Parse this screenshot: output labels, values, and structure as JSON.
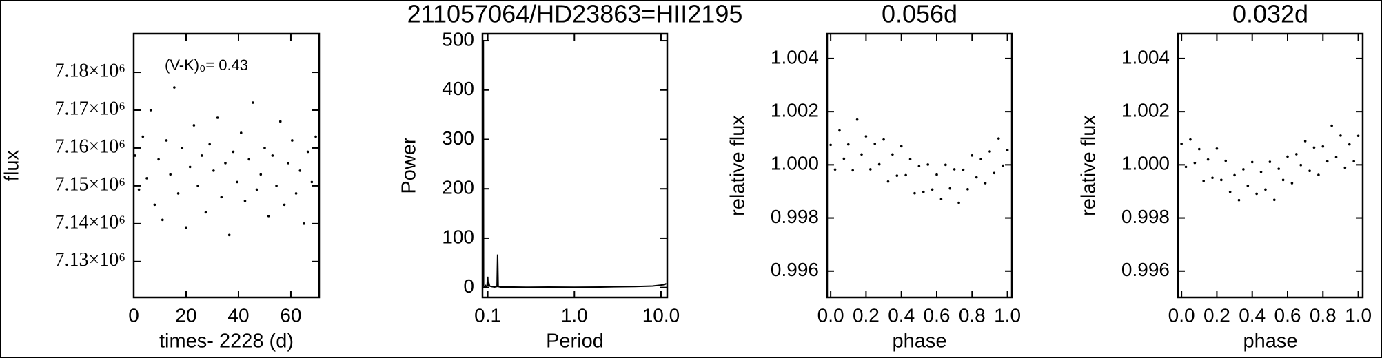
{
  "title": "211057064/HD23863=HII2195",
  "chart_data": [
    {
      "type": "scatter",
      "annotation": "(V-K)₀= 0.43",
      "x_label": "times- 2228 (d)",
      "y_label": "flux",
      "color": "#000000",
      "x": [
        0.5,
        2,
        3.5,
        5,
        6.5,
        8,
        9.5,
        11,
        12.5,
        14,
        15.5,
        17,
        18.5,
        20,
        21.5,
        23,
        24.5,
        26,
        27.5,
        29,
        30.5,
        32,
        33.5,
        35,
        36.5,
        38,
        39.5,
        41,
        42.5,
        44,
        45.5,
        47,
        48.5,
        50,
        51.5,
        53,
        54.5,
        56,
        57.5,
        59,
        60.5,
        62,
        63.5,
        65,
        66.5,
        68,
        69.5
      ],
      "values": [
        7158000,
        7149000,
        7163000,
        7152000,
        7170000,
        7145000,
        7157000,
        7141000,
        7162000,
        7153000,
        7176000,
        7148000,
        7160000,
        7139000,
        7155000,
        7166000,
        7150000,
        7158000,
        7143000,
        7161000,
        7154000,
        7168000,
        7147000,
        7156000,
        7137000,
        7159000,
        7151000,
        7164000,
        7146000,
        7157000,
        7172000,
        7149000,
        7153000,
        7160000,
        7142000,
        7158000,
        7150000,
        7167000,
        7145000,
        7156000,
        7162000,
        7148000,
        7154000,
        7140000,
        7159000,
        7151000,
        7163000
      ],
      "xlim": [
        0,
        70.8
      ],
      "ylim": [
        7120500,
        7190200
      ],
      "xticks": [
        0,
        20,
        40,
        60
      ],
      "yticks": [
        {
          "value": 7130000,
          "label": "7.13×10⁶"
        },
        {
          "value": 7140000,
          "label": "7.14×10⁶"
        },
        {
          "value": 7150000,
          "label": "7.15×10⁶"
        },
        {
          "value": 7160000,
          "label": "7.16×10⁶"
        },
        {
          "value": 7170000,
          "label": "7.17×10⁶"
        },
        {
          "value": 7180000,
          "label": "7.18×10⁶"
        }
      ]
    },
    {
      "type": "line",
      "x_label": "Period",
      "y_label": "Power",
      "color": "#000000",
      "log_x": true,
      "x": [
        0.088,
        0.0885,
        0.089,
        0.0895,
        0.09,
        0.092,
        0.094,
        0.096,
        0.098,
        0.1,
        0.101,
        0.102,
        0.105,
        0.11,
        0.12,
        0.128,
        0.13,
        0.132,
        0.14,
        0.2,
        0.3,
        0.5,
        1,
        2,
        5,
        8,
        10,
        11,
        11.5
      ],
      "values": [
        5,
        500,
        500,
        2,
        3,
        1,
        4,
        2,
        3,
        22,
        2,
        12,
        3,
        2,
        1,
        2,
        67,
        2,
        1,
        1,
        0.5,
        1,
        0.5,
        1,
        2,
        3,
        5,
        6,
        8
      ],
      "xlim": [
        0.087,
        11.8
      ],
      "ylim": [
        -20,
        514
      ],
      "xticks": [
        0.1,
        {
          "value": 1,
          "label": "1.0"
        },
        {
          "value": 10,
          "label": "10.0"
        }
      ],
      "yticks": [
        0,
        100,
        200,
        300,
        400,
        500
      ]
    },
    {
      "type": "scatter",
      "title": "0.056d",
      "x_label": "phase",
      "y_label": "relative flux",
      "color": "#000000",
      "x": [
        0,
        0.025,
        0.05,
        0.075,
        0.1,
        0.125,
        0.15,
        0.175,
        0.2,
        0.225,
        0.25,
        0.275,
        0.3,
        0.325,
        0.35,
        0.375,
        0.4,
        0.425,
        0.45,
        0.475,
        0.5,
        0.525,
        0.55,
        0.575,
        0.6,
        0.625,
        0.65,
        0.675,
        0.7,
        0.725,
        0.75,
        0.775,
        0.8,
        0.825,
        0.85,
        0.875,
        0.9,
        0.925,
        0.95,
        0.975,
        1
      ],
      "values": [
        1.00075,
        0.99982,
        1.00129,
        1.00023,
        1.00077,
        0.99979,
        1.0017,
        1.00039,
        1.00107,
        0.99983,
        1.00079,
        1.00002,
        1.00095,
        0.99937,
        1.00039,
        0.99959,
        1.0007,
        0.99961,
        1.00021,
        0.99893,
        0.99995,
        0.99898,
        1.00001,
        0.99907,
        0.99963,
        0.99871,
        1.0,
        0.99911,
        0.99983,
        0.99857,
        0.99981,
        0.99908,
        1.00035,
        0.99953,
        1.00021,
        0.99931,
        1.0005,
        0.99969,
        1.00099,
        0.99997,
        1.00055
      ],
      "xlim": [
        -0.02,
        1.025
      ],
      "ylim": [
        0.99501,
        1.00493
      ],
      "xticks": [
        {
          "value": 0,
          "label": "0.0"
        },
        0.2,
        0.4,
        0.6,
        0.8,
        {
          "value": 1,
          "label": "1.0"
        }
      ],
      "yticks": [
        0.996,
        0.998,
        {
          "value": 1,
          "label": "1.000"
        },
        1.002,
        1.004
      ]
    },
    {
      "type": "scatter",
      "title": "0.032d",
      "x_label": "phase",
      "y_label": "relative flux",
      "color": "#000000",
      "x": [
        0,
        0.025,
        0.05,
        0.075,
        0.1,
        0.125,
        0.15,
        0.175,
        0.2,
        0.225,
        0.25,
        0.275,
        0.3,
        0.325,
        0.35,
        0.375,
        0.4,
        0.425,
        0.45,
        0.475,
        0.5,
        0.525,
        0.55,
        0.575,
        0.6,
        0.625,
        0.65,
        0.675,
        0.7,
        0.725,
        0.75,
        0.775,
        0.8,
        0.825,
        0.85,
        0.875,
        0.9,
        0.925,
        0.95,
        0.975,
        1
      ],
      "values": [
        1.00079,
        0.99992,
        1.00095,
        1.00007,
        1.00059,
        0.99939,
        1.0002,
        0.99951,
        1.00061,
        0.99943,
        1.00015,
        0.99898,
        0.99961,
        0.99867,
        0.99983,
        0.99921,
        1.0001,
        0.99891,
        0.99973,
        0.99907,
        1.00011,
        0.99868,
        0.99985,
        0.99943,
        1.00031,
        0.99931,
        1.0004,
        0.99999,
        1.00089,
        0.99977,
        1.00065,
        0.99962,
        1.00069,
        1.00013,
        1.00147,
        1.00029,
        1.0011,
        0.99989,
        1.00077,
        1.00013,
        1.00109
      ],
      "xlim": [
        -0.02,
        1.025
      ],
      "ylim": [
        0.99501,
        1.00493
      ],
      "xticks": [
        {
          "value": 0,
          "label": "0.0"
        },
        0.2,
        0.4,
        0.6,
        0.8,
        {
          "value": 1,
          "label": "1.0"
        }
      ],
      "yticks": [
        0.996,
        0.998,
        {
          "value": 1,
          "label": "1.000"
        },
        1.002,
        1.004
      ]
    }
  ]
}
